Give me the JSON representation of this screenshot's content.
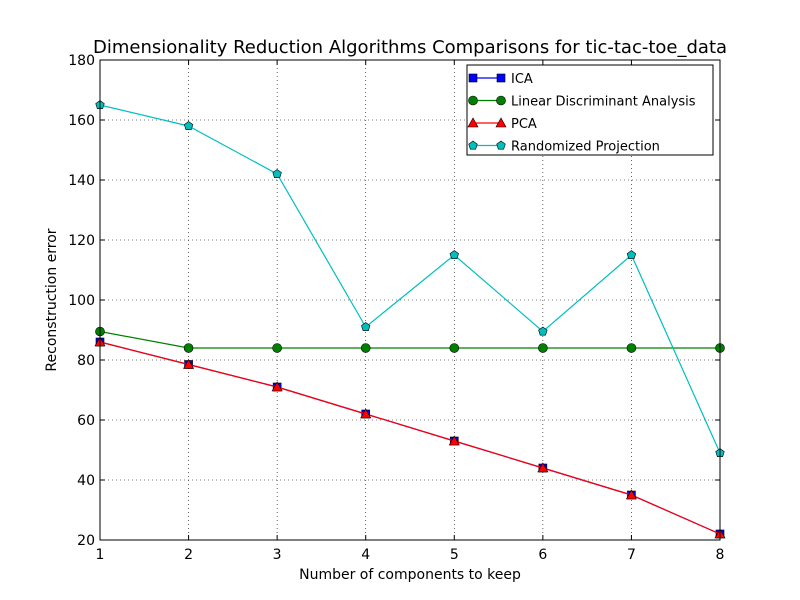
{
  "chart_data": {
    "type": "line",
    "title": "Dimensionality Reduction Algorithms Comparisons for tic-tac-toe_data",
    "xlabel": "Number of components to keep",
    "ylabel": "Reconstruction error",
    "x": [
      1,
      2,
      3,
      4,
      5,
      6,
      7,
      8
    ],
    "xlim": [
      1,
      8
    ],
    "ylim": [
      20,
      180
    ],
    "xticks": [
      1,
      2,
      3,
      4,
      5,
      6,
      7,
      8
    ],
    "yticks": [
      20,
      40,
      60,
      80,
      100,
      120,
      140,
      160,
      180
    ],
    "grid": true,
    "legend_position": "top-right",
    "series": [
      {
        "name": "ICA",
        "color": "#0000ff",
        "marker": "square",
        "values": [
          86,
          78.5,
          71,
          62,
          53,
          44,
          35,
          22
        ]
      },
      {
        "name": "Linear Discriminant Analysis",
        "color": "#008000",
        "marker": "circle",
        "values": [
          89.5,
          84,
          84,
          84,
          84,
          84,
          84,
          84
        ]
      },
      {
        "name": "PCA",
        "color": "#ff0000",
        "marker": "triangle",
        "values": [
          86,
          78.5,
          71,
          62,
          53,
          44,
          35,
          22
        ]
      },
      {
        "name": "Randomized Projection",
        "color": "#00bfbf",
        "marker": "pentagon",
        "values": [
          165,
          158,
          142,
          91,
          115,
          89.5,
          115,
          49
        ]
      }
    ]
  }
}
